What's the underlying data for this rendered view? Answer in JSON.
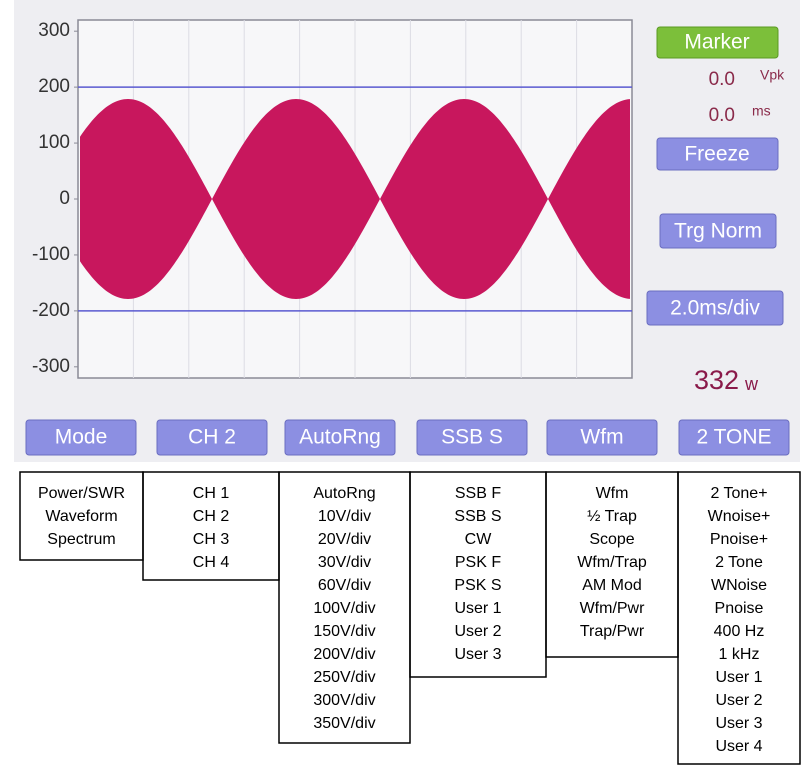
{
  "scope": {
    "ylim": [
      -320,
      320
    ],
    "yticks": [
      300,
      200,
      100,
      0,
      -100,
      -200,
      -300
    ],
    "hlines": [
      200,
      -200
    ],
    "wave_color": "#c8175d"
  },
  "side_panel": {
    "marker_button": "Marker",
    "voltage": "0.0",
    "voltage_unit": "Vpk",
    "time": "0.0",
    "time_unit": "ms",
    "freeze_button": "Freeze",
    "trigger_button": "Trg Norm",
    "timebase_button": "2.0ms/div",
    "power": "332",
    "power_unit": "w"
  },
  "bottom_buttons": [
    "Mode",
    "CH 2",
    "AutoRng",
    "SSB S",
    "Wfm",
    "2 TONE"
  ],
  "menus": [
    {
      "items": [
        "Power/SWR",
        "Waveform",
        "Spectrum"
      ]
    },
    {
      "items": [
        "CH 1",
        "CH 2",
        "CH 3",
        "CH 4"
      ]
    },
    {
      "items": [
        "AutoRng",
        "10V/div",
        "20V/div",
        "30V/div",
        "60V/div",
        "100V/div",
        "150V/div",
        "200V/div",
        "250V/div",
        "300V/div",
        "350V/div"
      ]
    },
    {
      "items": [
        "SSB F",
        "SSB S",
        "CW",
        "PSK F",
        "PSK S",
        "User 1",
        "User 2",
        "User 3"
      ]
    },
    {
      "items": [
        "Wfm",
        "½ Trap",
        "Scope",
        "Wfm/Trap",
        "AM Mod",
        "Wfm/Pwr",
        "Trap/Pwr"
      ]
    },
    {
      "items": [
        "2 Tone+",
        "Wnoise+",
        "Pnoise+",
        "2 Tone",
        "WNoise",
        "Pnoise",
        "400 Hz",
        "1 kHz",
        "User 1",
        "User 2",
        "User 3",
        "User 4"
      ]
    }
  ]
}
